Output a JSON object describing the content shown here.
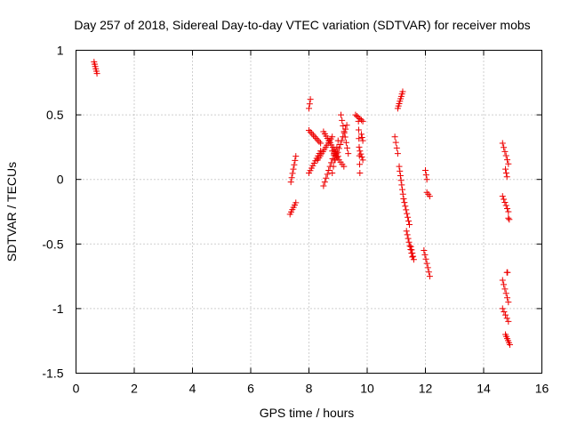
{
  "chart_data": {
    "type": "scatter",
    "title": "Day 257 of 2018, Sidereal Day-to-day VTEC variation (SDTVAR) for receiver mobs",
    "xlabel": "GPS time / hours",
    "ylabel": "SDTVAR / TECUs",
    "xlim": [
      0,
      16
    ],
    "ylim": [
      -1.5,
      1
    ],
    "xticks": [
      "0",
      "2",
      "4",
      "6",
      "8",
      "10",
      "12",
      "14",
      "16"
    ],
    "yticks": [
      "1",
      "0.5",
      "0",
      "-0.5",
      "-1",
      "-1.5"
    ],
    "xtick_values": [
      0,
      2,
      4,
      6,
      8,
      10,
      12,
      14,
      16
    ],
    "ytick_values": [
      1,
      0.5,
      0,
      -0.5,
      -1,
      -1.5
    ],
    "grid": true,
    "marker": "+",
    "color": "#ee0000",
    "segments": [
      {
        "x": [
          0.62,
          0.72
        ],
        "y": [
          0.91,
          0.82
        ],
        "n": 6
      },
      {
        "x": [
          7.35,
          7.55
        ],
        "y": [
          -0.27,
          -0.18
        ],
        "n": 6
      },
      {
        "x": [
          7.38,
          7.55
        ],
        "y": [
          -0.02,
          0.18
        ],
        "n": 7
      },
      {
        "x": [
          8.0,
          8.05
        ],
        "y": [
          0.55,
          0.62
        ],
        "n": 3
      },
      {
        "x": [
          8.0,
          8.4
        ],
        "y": [
          0.05,
          0.22
        ],
        "n": 10
      },
      {
        "x": [
          8.0,
          8.4
        ],
        "y": [
          0.38,
          0.28
        ],
        "n": 9
      },
      {
        "x": [
          8.3,
          8.8
        ],
        "y": [
          0.15,
          0.33
        ],
        "n": 12
      },
      {
        "x": [
          8.5,
          9.0
        ],
        "y": [
          0.37,
          0.18
        ],
        "n": 12
      },
      {
        "x": [
          8.5,
          8.9
        ],
        "y": [
          -0.05,
          0.22
        ],
        "n": 10
      },
      {
        "x": [
          8.9,
          9.3
        ],
        "y": [
          0.15,
          0.42
        ],
        "n": 10
      },
      {
        "x": [
          9.1,
          9.35
        ],
        "y": [
          0.5,
          0.2
        ],
        "n": 8
      },
      {
        "x": [
          8.8,
          9.2
        ],
        "y": [
          0.22,
          0.1
        ],
        "n": 8
      },
      {
        "x": [
          8.8,
          9.0
        ],
        "y": [
          0.05,
          0.3
        ],
        "n": 6
      },
      {
        "x": [
          9.6,
          9.85
        ],
        "y": [
          0.5,
          0.45
        ],
        "n": 6
      },
      {
        "x": [
          9.7,
          9.75
        ],
        "y": [
          0.45,
          0.05
        ],
        "n": 7
      },
      {
        "x": [
          9.8,
          9.85
        ],
        "y": [
          0.35,
          0.3
        ],
        "n": 3
      },
      {
        "x": [
          9.75,
          9.85
        ],
        "y": [
          0.22,
          0.15
        ],
        "n": 4
      },
      {
        "x": [
          11.05,
          11.22
        ],
        "y": [
          0.55,
          0.68
        ],
        "n": 8
      },
      {
        "x": [
          10.95,
          11.05
        ],
        "y": [
          0.33,
          0.2
        ],
        "n": 4
      },
      {
        "x": [
          11.1,
          11.25
        ],
        "y": [
          0.1,
          -0.15
        ],
        "n": 8
      },
      {
        "x": [
          11.25,
          11.45
        ],
        "y": [
          -0.15,
          -0.35
        ],
        "n": 8
      },
      {
        "x": [
          11.35,
          11.55
        ],
        "y": [
          -0.4,
          -0.6
        ],
        "n": 8
      },
      {
        "x": [
          11.5,
          11.6
        ],
        "y": [
          -0.52,
          -0.62
        ],
        "n": 5
      },
      {
        "x": [
          12.0,
          12.05
        ],
        "y": [
          0.07,
          0.0
        ],
        "n": 3
      },
      {
        "x": [
          12.05,
          12.15
        ],
        "y": [
          -0.1,
          -0.13
        ],
        "n": 3
      },
      {
        "x": [
          11.95,
          12.15
        ],
        "y": [
          -0.55,
          -0.75
        ],
        "n": 7
      },
      {
        "x": [
          14.65,
          14.85
        ],
        "y": [
          0.28,
          0.12
        ],
        "n": 6
      },
      {
        "x": [
          14.75,
          14.8
        ],
        "y": [
          0.08,
          0.02
        ],
        "n": 3
      },
      {
        "x": [
          14.65,
          14.85
        ],
        "y": [
          -0.13,
          -0.25
        ],
        "n": 6
      },
      {
        "x": [
          14.85,
          14.88
        ],
        "y": [
          -0.3,
          -0.31
        ],
        "n": 2
      },
      {
        "x": [
          14.65,
          14.85
        ],
        "y": [
          -0.78,
          -0.95
        ],
        "n": 6
      },
      {
        "x": [
          14.65,
          14.85
        ],
        "y": [
          -1.0,
          -1.1
        ],
        "n": 5
      },
      {
        "x": [
          14.8,
          14.82
        ],
        "y": [
          -0.72,
          -0.72
        ],
        "n": 2
      },
      {
        "x": [
          14.75,
          14.9
        ],
        "y": [
          -1.2,
          -1.28
        ],
        "n": 6
      }
    ]
  }
}
